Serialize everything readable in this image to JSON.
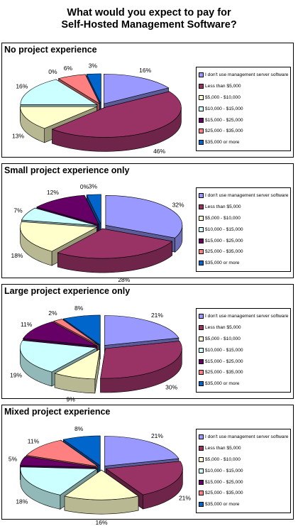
{
  "title_line1": "What would you expect to pay for",
  "title_line2": "Self-Hosted Management Software?",
  "legend_labels": [
    "I don't use management server software",
    "Less than $5,000",
    "$5,000 - $10,000",
    "$10,000 - $15,000",
    "$15,000 - $25,000",
    "$25,000 - $35,000",
    "$35,000 or more"
  ],
  "colors": [
    "#9999ff",
    "#993366",
    "#ffffcc",
    "#ccffff",
    "#660066",
    "#ff8080",
    "#0066cc"
  ],
  "chart_data": [
    {
      "type": "pie",
      "title": "No project experience",
      "categories": [
        "I don't use management server software",
        "Less than $5,000",
        "$5,000 - $10,000",
        "$10,000 - $15,000",
        "$15,000 - $25,000",
        "$25,000 - $35,000",
        "$35,000 or more"
      ],
      "values": [
        16,
        46,
        13,
        16,
        0,
        6,
        3
      ]
    },
    {
      "type": "pie",
      "title": "Small project experience only",
      "categories": [
        "I don't use management server software",
        "Less than $5,000",
        "$5,000 - $10,000",
        "$10,000 - $15,000",
        "$15,000 - $25,000",
        "$25,000 - $35,000",
        "$35,000 or more"
      ],
      "values": [
        32,
        28,
        18,
        7,
        12,
        0,
        3
      ]
    },
    {
      "type": "pie",
      "title": "Large project experience only",
      "categories": [
        "I don't use management server software",
        "Less than $5,000",
        "$5,000 - $10,000",
        "$10,000 - $15,000",
        "$15,000 - $25,000",
        "$25,000 - $35,000",
        "$35,000 or more"
      ],
      "values": [
        21,
        30,
        9,
        19,
        11,
        2,
        8
      ]
    },
    {
      "type": "pie",
      "title": "Mixed project experience",
      "categories": [
        "I don't use management server software",
        "Less than $5,000",
        "$5,000 - $10,000",
        "$10,000 - $15,000",
        "$15,000 - $25,000",
        "$25,000 - $35,000",
        "$35,000 or more"
      ],
      "values": [
        21,
        21,
        16,
        18,
        5,
        11,
        8
      ]
    }
  ]
}
